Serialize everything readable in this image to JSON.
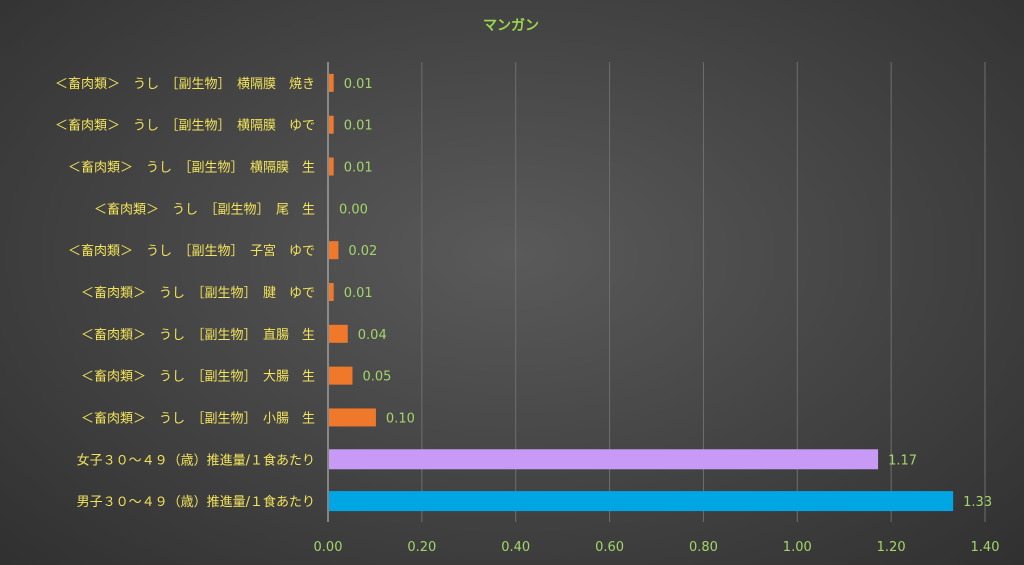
{
  "chart_data": {
    "type": "bar",
    "orientation": "horizontal",
    "title": "マンガン",
    "xlim": [
      0,
      1.4
    ],
    "xticks": [
      "0.00",
      "0.20",
      "0.40",
      "0.60",
      "0.80",
      "1.00",
      "1.20",
      "1.40"
    ],
    "grid": true,
    "legend": "none",
    "categories": [
      "＜畜肉類＞　うし　［副生物］　横隔膜　焼き",
      "＜畜肉類＞　うし　［副生物］　横隔膜　ゆで",
      "＜畜肉類＞　うし　［副生物］　横隔膜　生",
      "＜畜肉類＞　うし　［副生物］　尾　生",
      "＜畜肉類＞　うし　［副生物］　子宮　ゆで",
      "＜畜肉類＞　うし　［副生物］　腱　ゆで",
      "＜畜肉類＞　うし　［副生物］　直腸　生",
      "＜畜肉類＞　うし　［副生物］　大腸　生",
      "＜畜肉類＞　うし　［副生物］　小腸　生",
      "女子３０～４９（歳）推進量/１食あたり",
      "男子３０～４９（歳）推進量/１食あたり"
    ],
    "values": [
      0.01,
      0.01,
      0.01,
      0.0,
      0.02,
      0.01,
      0.04,
      0.05,
      0.1,
      1.17,
      1.33
    ],
    "value_labels": [
      "0.01",
      "0.01",
      "0.01",
      "0.00",
      "0.02",
      "0.01",
      "0.04",
      "0.05",
      "0.10",
      "1.17",
      "1.33"
    ],
    "colors": [
      "#f0782a",
      "#f0782a",
      "#f0782a",
      "#f0782a",
      "#f0782a",
      "#f0782a",
      "#f0782a",
      "#f0782a",
      "#f0782a",
      "#c79af5",
      "#00a6e4"
    ]
  }
}
